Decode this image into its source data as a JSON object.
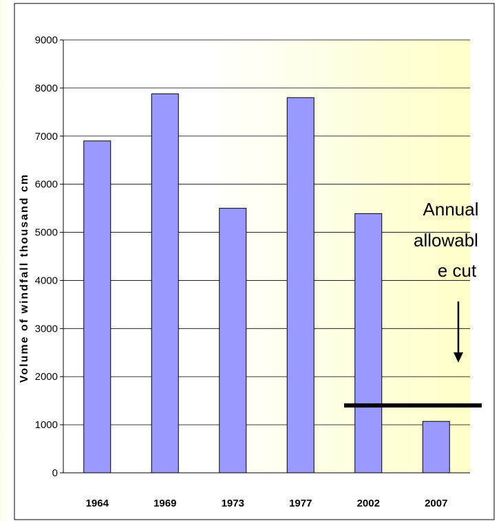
{
  "chart_data": {
    "type": "bar",
    "title": "",
    "xlabel": "",
    "ylabel": "Volume of windfall thousand cm",
    "categories": [
      "1964",
      "1969",
      "1973",
      "1977",
      "2002",
      "2007"
    ],
    "values": [
      6900,
      7880,
      5500,
      7800,
      5390,
      1070
    ],
    "ylim": [
      0,
      9000
    ],
    "yticks": [
      0,
      1000,
      2000,
      3000,
      4000,
      5000,
      6000,
      7000,
      8000,
      9000
    ],
    "grid": true,
    "legend": "none",
    "annotation": {
      "lines": [
        "Annual",
        "allowabl",
        "e cut"
      ],
      "reference_value": 1400
    },
    "colors": {
      "bar_fill": "#9999ff",
      "bar_stroke": "#000000",
      "plot_bg_left": "#ffffff",
      "plot_bg_right": "#ffffc8",
      "page_edge_accent": "#fdfbe6",
      "grid": "#000000",
      "reference_line": "#000000"
    }
  }
}
